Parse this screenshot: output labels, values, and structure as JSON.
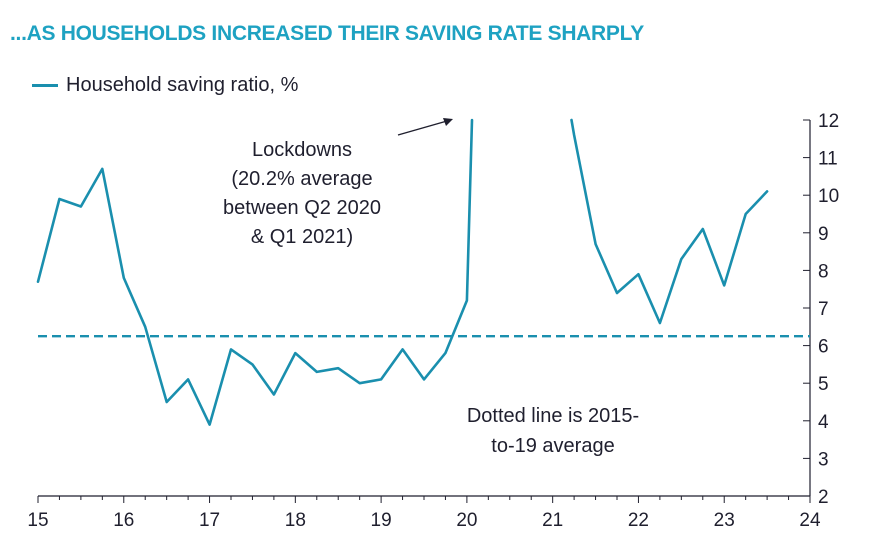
{
  "title": "...AS HOUSEHOLDS INCREASED THEIR SAVING RATE SHARPLY",
  "chart_data": {
    "type": "line",
    "legend_position": "top-left",
    "series": [
      {
        "name": "Household saving ratio, %",
        "color": "#1a8fae",
        "points": [
          [
            15.0,
            7.7
          ],
          [
            15.25,
            9.9
          ],
          [
            15.5,
            9.7
          ],
          [
            15.75,
            10.7
          ],
          [
            16.0,
            7.8
          ],
          [
            16.25,
            6.5
          ],
          [
            16.5,
            4.5
          ],
          [
            16.75,
            5.1
          ],
          [
            17.0,
            3.9
          ],
          [
            17.25,
            5.9
          ],
          [
            17.5,
            5.5
          ],
          [
            17.75,
            4.7
          ],
          [
            18.0,
            5.8
          ],
          [
            18.25,
            5.3
          ],
          [
            18.5,
            5.4
          ],
          [
            18.75,
            5.0
          ],
          [
            19.0,
            5.1
          ],
          [
            19.25,
            5.9
          ],
          [
            19.5,
            5.1
          ],
          [
            19.75,
            5.8
          ],
          [
            20.0,
            7.2
          ],
          [
            20.06,
            12.0
          ],
          null,
          [
            21.22,
            12.0
          ],
          [
            21.25,
            11.6
          ],
          [
            21.5,
            8.7
          ],
          [
            21.75,
            7.4
          ],
          [
            22.0,
            7.9
          ],
          [
            22.25,
            6.6
          ],
          [
            22.5,
            8.3
          ],
          [
            22.75,
            9.1
          ],
          [
            23.0,
            7.6
          ],
          [
            23.25,
            9.5
          ],
          [
            23.5,
            10.1
          ]
        ]
      }
    ],
    "reference_line": {
      "value": 6.25,
      "style": "dashed",
      "color": "#1a8fae"
    },
    "x_ticks": [
      "15",
      "16",
      "17",
      "18",
      "19",
      "20",
      "21",
      "22",
      "23",
      "24"
    ],
    "y_ticks": [
      "2",
      "3",
      "4",
      "5",
      "6",
      "7",
      "8",
      "9",
      "10",
      "11",
      "12"
    ],
    "xlim": [
      15,
      24
    ],
    "ylim": [
      2,
      12
    ],
    "y_axis_side": "right",
    "annotations": {
      "lockdowns": [
        "Lockdowns",
        "(20.2% average",
        "between Q2 2020",
        "& Q1 2021)"
      ],
      "dotted": [
        "Dotted line is 2015-",
        "to-19 average"
      ]
    }
  }
}
